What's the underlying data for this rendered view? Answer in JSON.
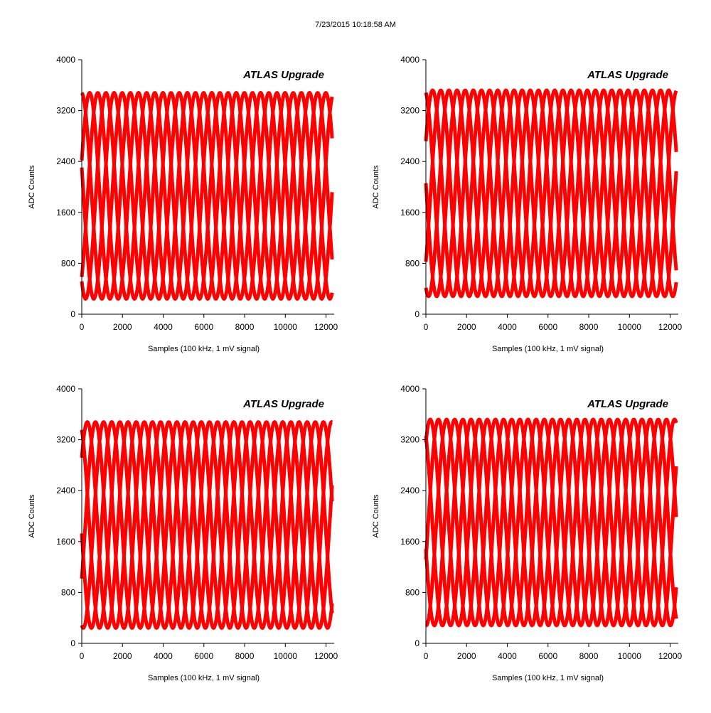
{
  "timestamp": "7/23/2015 10:18:58 AM",
  "colors": {
    "trace": "#ff0000",
    "axis": "#000000",
    "background": "#ffffff"
  },
  "chart_data": [
    {
      "type": "line",
      "title": "ATLAS Upgrade",
      "xlabel": "Samples (100 kHz, 1 mV signal)",
      "ylabel": "ADC Counts",
      "xlim": [
        0,
        12400
      ],
      "ylim": [
        0,
        4000
      ],
      "xticks": [
        0,
        2000,
        4000,
        6000,
        8000,
        10000,
        12000
      ],
      "yticks": [
        0,
        800,
        1600,
        2400,
        3200,
        4000
      ],
      "grid": false,
      "series": [
        {
          "waveform": "sine",
          "min": 240,
          "max": 3480,
          "period_samples": 2000,
          "overlaid_traces": 5,
          "x_range": [
            0,
            12300
          ]
        }
      ]
    },
    {
      "type": "line",
      "title": "ATLAS Upgrade",
      "xlabel": "Samples (100 kHz, 1 mV signal)",
      "ylabel": "ADC Counts",
      "xlim": [
        0,
        12400
      ],
      "ylim": [
        0,
        4000
      ],
      "xticks": [
        0,
        2000,
        4000,
        6000,
        8000,
        10000,
        12000
      ],
      "yticks": [
        0,
        800,
        1600,
        2400,
        3200,
        4000
      ],
      "grid": false,
      "series": [
        {
          "waveform": "sine",
          "min": 280,
          "max": 3520,
          "period_samples": 2000,
          "overlaid_traces": 5,
          "x_range": [
            0,
            12300
          ]
        }
      ]
    },
    {
      "type": "line",
      "title": "ATLAS Upgrade",
      "xlabel": "Samples (100 kHz, 1 mV signal)",
      "ylabel": "ADC Counts",
      "xlim": [
        0,
        12400
      ],
      "ylim": [
        0,
        4000
      ],
      "xticks": [
        0,
        2000,
        4000,
        6000,
        8000,
        10000,
        12000
      ],
      "yticks": [
        0,
        800,
        1600,
        2400,
        3200,
        4000
      ],
      "grid": false,
      "series": [
        {
          "waveform": "sine",
          "min": 240,
          "max": 3480,
          "period_samples": 2000,
          "overlaid_traces": 5,
          "x_range": [
            0,
            12300
          ]
        }
      ]
    },
    {
      "type": "line",
      "title": "ATLAS Upgrade",
      "xlabel": "Samples (100 kHz, 1 mV signal)",
      "ylabel": "ADC Counts",
      "xlim": [
        0,
        12400
      ],
      "ylim": [
        0,
        4000
      ],
      "xticks": [
        0,
        2000,
        4000,
        6000,
        8000,
        10000,
        12000
      ],
      "yticks": [
        0,
        800,
        1600,
        2400,
        3200,
        4000
      ],
      "grid": false,
      "series": [
        {
          "waveform": "sine",
          "min": 280,
          "max": 3520,
          "period_samples": 2000,
          "overlaid_traces": 5,
          "x_range": [
            0,
            12300
          ]
        }
      ]
    }
  ]
}
